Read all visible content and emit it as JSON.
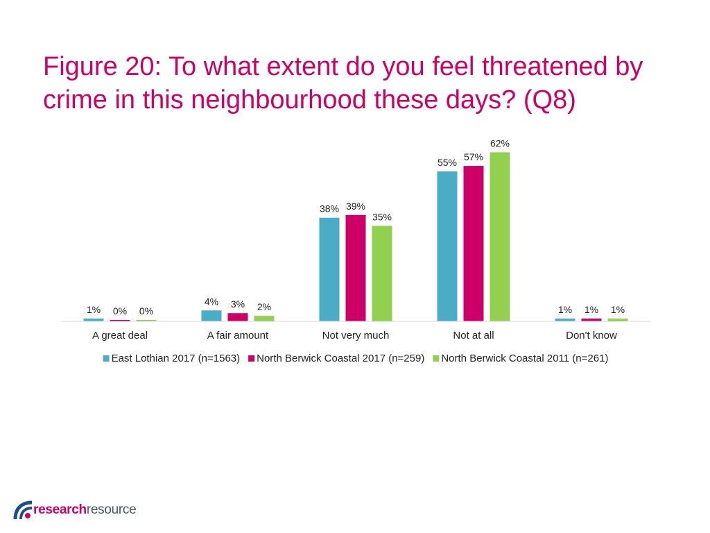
{
  "slide": {
    "title": "Figure 20: To what extent do you feel threatened by crime in this neighbourhood these days? (Q8)"
  },
  "logo": {
    "part1": "research",
    "part2": "resource",
    "colors": [
      "#1e4e8c",
      "#cc0066"
    ]
  },
  "chart_data": {
    "type": "bar",
    "categories": [
      "A great deal",
      "A fair amount",
      "Not very much",
      "Not at all",
      "Don't know"
    ],
    "series": [
      {
        "name": "East Lothian 2017 (n=1563)",
        "color": "#4bacc6",
        "values": [
          1,
          4,
          38,
          55,
          1
        ],
        "labels": [
          "1%",
          "4%",
          "38%",
          "55%",
          "1%"
        ]
      },
      {
        "name": "North Berwick Coastal 2017 (n=259)",
        "color": "#cc0066",
        "values": [
          0.4,
          3,
          39,
          57,
          1
        ],
        "labels": [
          "0%",
          "3%",
          "39%",
          "57%",
          "1%"
        ]
      },
      {
        "name": "North Berwick Coastal 2011 (n=261)",
        "color": "#92d050",
        "values": [
          0.4,
          2,
          35,
          62,
          1
        ],
        "labels": [
          "0%",
          "2%",
          "35%",
          "62%",
          "1%"
        ]
      }
    ],
    "ylim": [
      0,
      70
    ],
    "grid": false,
    "legend": "bottom"
  }
}
